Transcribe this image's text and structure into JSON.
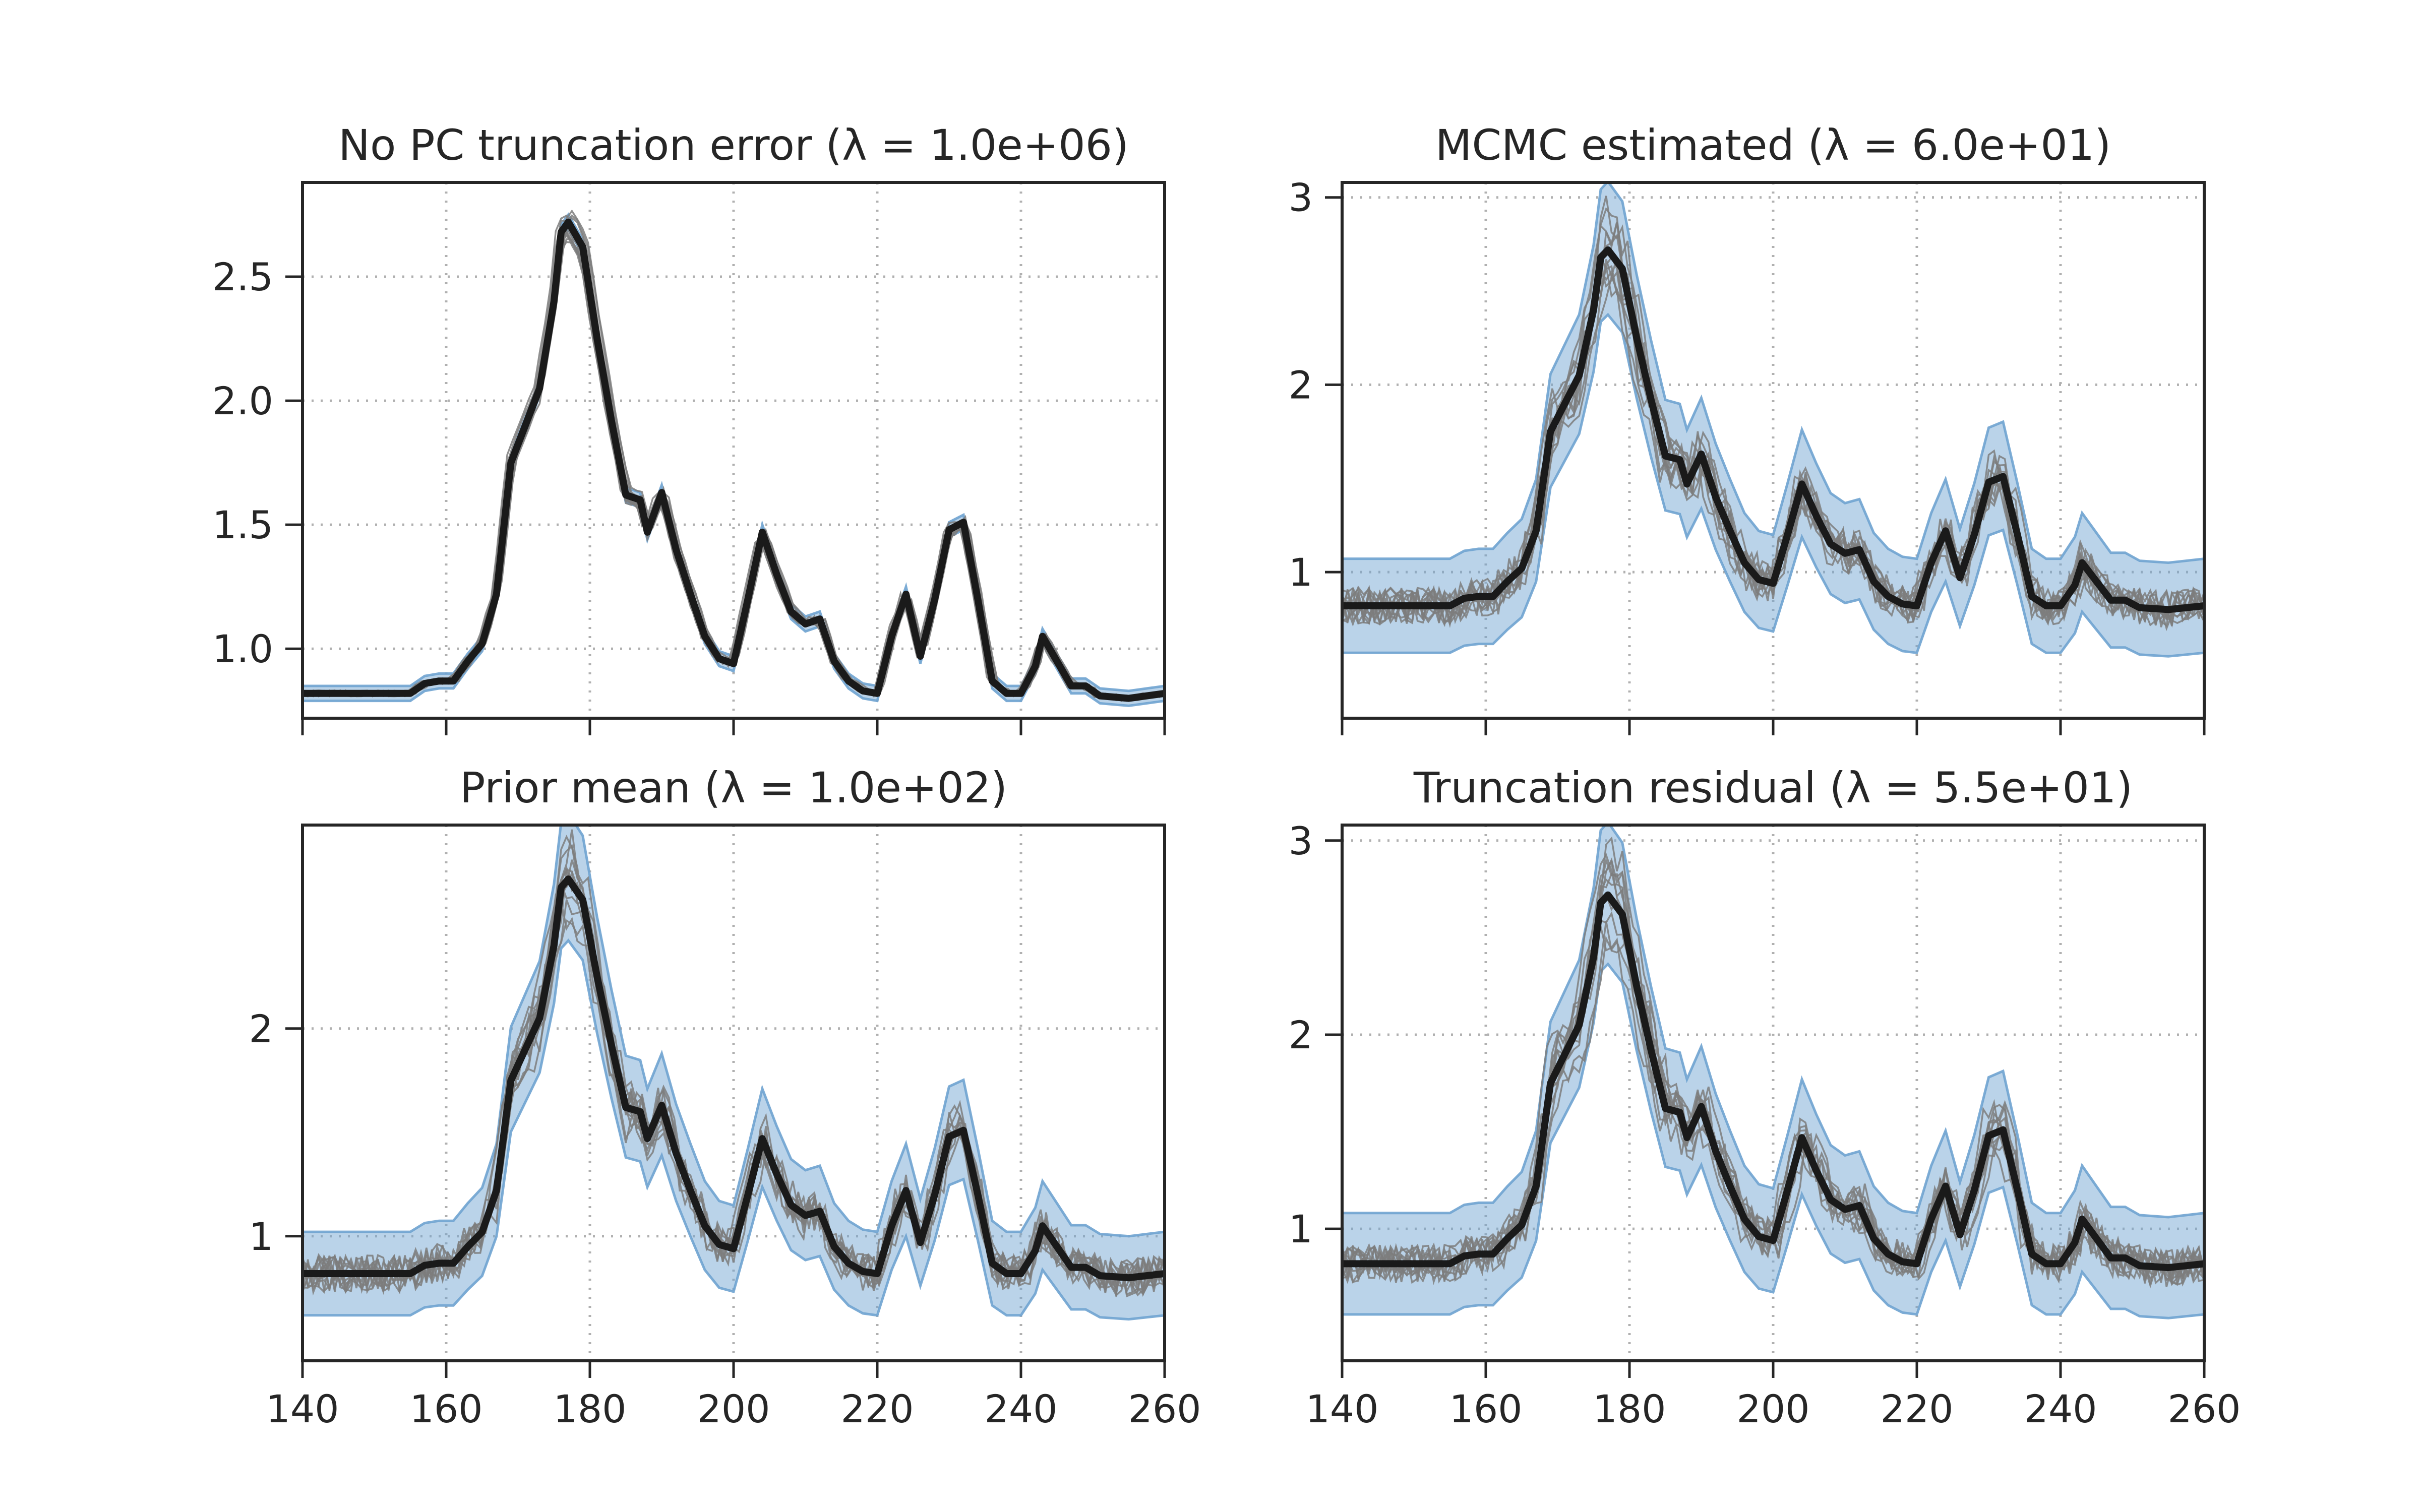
{
  "chart_data": [
    {
      "type": "line",
      "title": "No PC truncation error (λ = 1.0e+06)",
      "xlabel": "",
      "ylabel": "",
      "xlim": [
        140,
        260
      ],
      "ylim": [
        0.72,
        2.88
      ],
      "xticks": [
        140,
        160,
        180,
        200,
        220,
        240,
        260
      ],
      "xtick_labels": [],
      "yticks": [
        1.0,
        1.5,
        2.0,
        2.5
      ],
      "ytick_labels": [
        "1.0",
        "1.5",
        "2.0",
        "2.5"
      ],
      "grid": true,
      "band_halfwidth": 0.03,
      "sample_count": 12,
      "sample_noise": 0.012,
      "sample_shape_spread": 0.04,
      "truth_line_color": "#1a1a1a",
      "sample_line_color": "#7d7d7d",
      "band_color": "#6fa3d0",
      "series": [
        {
          "x": [
            140,
            150,
            155,
            157,
            159,
            161,
            163,
            165,
            167,
            169,
            171,
            173,
            175,
            176,
            177,
            179,
            181,
            183,
            185,
            187,
            188,
            190,
            192,
            194,
            196,
            198,
            200,
            202,
            204,
            206,
            208,
            210,
            212,
            214,
            216,
            218,
            220,
            222,
            224,
            226,
            228,
            230,
            232,
            234,
            236,
            238,
            240,
            242,
            243,
            245,
            247,
            249,
            251,
            255,
            260
          ],
          "y": [
            0.82,
            0.82,
            0.82,
            0.86,
            0.87,
            0.87,
            0.95,
            1.02,
            1.22,
            1.75,
            1.9,
            2.05,
            2.4,
            2.68,
            2.72,
            2.62,
            2.25,
            1.92,
            1.62,
            1.6,
            1.47,
            1.63,
            1.4,
            1.22,
            1.05,
            0.96,
            0.94,
            1.2,
            1.47,
            1.3,
            1.15,
            1.1,
            1.12,
            0.95,
            0.87,
            0.83,
            0.82,
            1.05,
            1.22,
            0.97,
            1.2,
            1.48,
            1.51,
            1.2,
            0.87,
            0.82,
            0.82,
            0.93,
            1.05,
            0.95,
            0.85,
            0.85,
            0.81,
            0.8,
            0.82
          ]
        }
      ]
    },
    {
      "type": "line",
      "title": "MCMC estimated (λ = 6.0e+01)",
      "xlabel": "",
      "ylabel": "",
      "xlim": [
        140,
        260
      ],
      "ylim": [
        0.22,
        3.08
      ],
      "xticks": [
        140,
        160,
        180,
        200,
        220,
        240,
        260
      ],
      "xtick_labels": [],
      "yticks": [
        1,
        2,
        3
      ],
      "ytick_labels": [
        "1",
        "2",
        "3"
      ],
      "grid": true,
      "band_halfwidth": 0.25,
      "sample_count": 12,
      "sample_noise": 0.1,
      "sample_shape_spread": 0.12,
      "series": [
        {
          "x": [
            140,
            150,
            155,
            157,
            159,
            161,
            163,
            165,
            167,
            169,
            171,
            173,
            175,
            176,
            177,
            179,
            181,
            183,
            185,
            187,
            188,
            190,
            192,
            194,
            196,
            198,
            200,
            202,
            204,
            206,
            208,
            210,
            212,
            214,
            216,
            218,
            220,
            222,
            224,
            226,
            228,
            230,
            232,
            234,
            236,
            238,
            240,
            242,
            243,
            245,
            247,
            249,
            251,
            255,
            260
          ],
          "y": [
            0.82,
            0.82,
            0.82,
            0.86,
            0.87,
            0.87,
            0.95,
            1.02,
            1.22,
            1.75,
            1.9,
            2.05,
            2.4,
            2.68,
            2.72,
            2.62,
            2.25,
            1.92,
            1.62,
            1.6,
            1.47,
            1.63,
            1.4,
            1.22,
            1.05,
            0.96,
            0.94,
            1.2,
            1.47,
            1.3,
            1.15,
            1.1,
            1.12,
            0.95,
            0.87,
            0.83,
            0.82,
            1.05,
            1.22,
            0.97,
            1.2,
            1.48,
            1.51,
            1.2,
            0.87,
            0.82,
            0.82,
            0.93,
            1.05,
            0.95,
            0.85,
            0.85,
            0.81,
            0.8,
            0.82
          ]
        }
      ]
    },
    {
      "type": "line",
      "title": "Prior mean (λ = 1.0e+02)",
      "xlabel": "",
      "ylabel": "",
      "xlim": [
        140,
        260
      ],
      "ylim": [
        0.4,
        2.98
      ],
      "xticks": [
        140,
        160,
        180,
        200,
        220,
        240,
        260
      ],
      "xtick_labels": [
        "140",
        "160",
        "180",
        "200",
        "220",
        "240",
        "260"
      ],
      "yticks": [
        1,
        2
      ],
      "ytick_labels": [
        "1",
        "2"
      ],
      "grid": true,
      "band_halfwidth": 0.2,
      "sample_count": 12,
      "sample_noise": 0.09,
      "sample_shape_spread": 0.11,
      "series": [
        {
          "x": [
            140,
            150,
            155,
            157,
            159,
            161,
            163,
            165,
            167,
            169,
            171,
            173,
            175,
            176,
            177,
            179,
            181,
            183,
            185,
            187,
            188,
            190,
            192,
            194,
            196,
            198,
            200,
            202,
            204,
            206,
            208,
            210,
            212,
            214,
            216,
            218,
            220,
            222,
            224,
            226,
            228,
            230,
            232,
            234,
            236,
            238,
            240,
            242,
            243,
            245,
            247,
            249,
            251,
            255,
            260
          ],
          "y": [
            0.82,
            0.82,
            0.82,
            0.86,
            0.87,
            0.87,
            0.95,
            1.02,
            1.22,
            1.75,
            1.9,
            2.05,
            2.4,
            2.68,
            2.72,
            2.62,
            2.25,
            1.92,
            1.62,
            1.6,
            1.47,
            1.63,
            1.4,
            1.22,
            1.05,
            0.96,
            0.94,
            1.2,
            1.47,
            1.3,
            1.15,
            1.1,
            1.12,
            0.95,
            0.87,
            0.83,
            0.82,
            1.05,
            1.22,
            0.97,
            1.2,
            1.48,
            1.51,
            1.2,
            0.87,
            0.82,
            0.82,
            0.93,
            1.05,
            0.95,
            0.85,
            0.85,
            0.81,
            0.8,
            0.82
          ]
        }
      ]
    },
    {
      "type": "line",
      "title": "Truncation residual (λ = 5.5e+01)",
      "xlabel": "",
      "ylabel": "",
      "xlim": [
        140,
        260
      ],
      "ylim": [
        0.32,
        3.08
      ],
      "xticks": [
        140,
        160,
        180,
        200,
        220,
        240,
        260
      ],
      "xtick_labels": [
        "140",
        "160",
        "180",
        "200",
        "220",
        "240",
        "260"
      ],
      "yticks": [
        1,
        2,
        3
      ],
      "ytick_labels": [
        "1",
        "2",
        "3"
      ],
      "grid": true,
      "band_halfwidth": 0.26,
      "sample_count": 12,
      "sample_noise": 0.1,
      "sample_shape_spread": 0.12,
      "series": [
        {
          "x": [
            140,
            150,
            155,
            157,
            159,
            161,
            163,
            165,
            167,
            169,
            171,
            173,
            175,
            176,
            177,
            179,
            181,
            183,
            185,
            187,
            188,
            190,
            192,
            194,
            196,
            198,
            200,
            202,
            204,
            206,
            208,
            210,
            212,
            214,
            216,
            218,
            220,
            222,
            224,
            226,
            228,
            230,
            232,
            234,
            236,
            238,
            240,
            242,
            243,
            245,
            247,
            249,
            251,
            255,
            260
          ],
          "y": [
            0.82,
            0.82,
            0.82,
            0.86,
            0.87,
            0.87,
            0.95,
            1.02,
            1.22,
            1.75,
            1.9,
            2.05,
            2.4,
            2.68,
            2.72,
            2.62,
            2.25,
            1.92,
            1.62,
            1.6,
            1.47,
            1.63,
            1.4,
            1.22,
            1.05,
            0.96,
            0.94,
            1.2,
            1.47,
            1.3,
            1.15,
            1.1,
            1.12,
            0.95,
            0.87,
            0.83,
            0.82,
            1.05,
            1.22,
            0.97,
            1.2,
            1.48,
            1.51,
            1.2,
            0.87,
            0.82,
            0.82,
            0.93,
            1.05,
            0.95,
            0.85,
            0.85,
            0.81,
            0.8,
            0.82
          ]
        }
      ]
    }
  ]
}
